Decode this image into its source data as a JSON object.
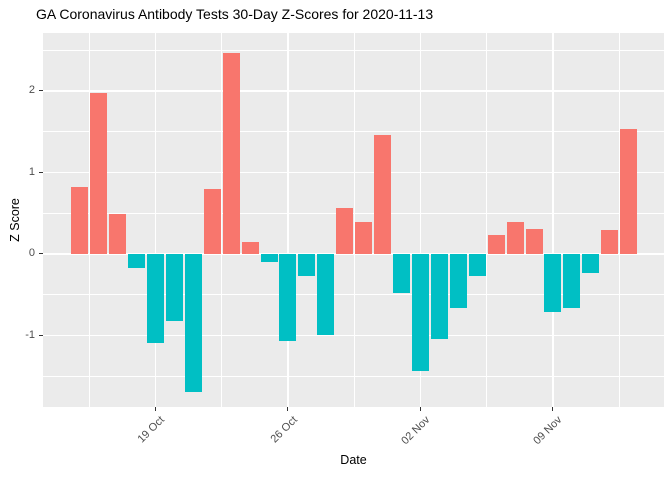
{
  "chart_data": {
    "type": "bar",
    "title": "GA Coronavirus Antibody Tests 30-Day Z-Scores for 2020-11-13",
    "xlabel": "Date",
    "ylabel": "Z Score",
    "x": [
      "2020-10-15",
      "2020-10-16",
      "2020-10-17",
      "2020-10-18",
      "2020-10-19",
      "2020-10-20",
      "2020-10-21",
      "2020-10-22",
      "2020-10-23",
      "2020-10-24",
      "2020-10-25",
      "2020-10-26",
      "2020-10-27",
      "2020-10-28",
      "2020-10-29",
      "2020-10-30",
      "2020-10-31",
      "2020-11-01",
      "2020-11-02",
      "2020-11-03",
      "2020-11-04",
      "2020-11-05",
      "2020-11-06",
      "2020-11-07",
      "2020-11-08",
      "2020-11-09",
      "2020-11-10",
      "2020-11-11",
      "2020-11-12",
      "2020-11-13"
    ],
    "values": [
      0.82,
      1.97,
      0.49,
      -0.17,
      -1.1,
      -0.83,
      -1.69,
      0.8,
      2.47,
      0.15,
      -0.1,
      -1.07,
      -0.27,
      -1.0,
      0.56,
      0.39,
      1.46,
      -0.48,
      -1.44,
      -1.04,
      -0.66,
      -0.27,
      0.23,
      0.39,
      0.3,
      -0.71,
      -0.66,
      -0.23,
      0.29,
      1.53
    ],
    "ylim": [
      -1.88,
      2.71
    ],
    "grid": true,
    "legend_position": "none",
    "y_axis": {
      "major_ticks": [
        2,
        1,
        0,
        -1
      ],
      "major_tick_labels": [
        "2",
        "1",
        "0",
        "-1"
      ],
      "minor_ticks": [
        2.5,
        1.5,
        0.5,
        -0.5,
        -1.5
      ]
    },
    "x_axis": {
      "major_ticks": [
        {
          "label": "19 Oct",
          "day_index": 4
        },
        {
          "label": "26 Oct",
          "day_index": 11
        },
        {
          "label": "02 Nov",
          "day_index": 18
        },
        {
          "label": "09 Nov",
          "day_index": 25
        }
      ],
      "minor_day_indices": [
        0.5,
        7.5,
        14.5,
        21.5,
        28.5
      ]
    },
    "colors": {
      "positive_bar": "#F8766D",
      "negative_bar": "#00BFC4",
      "panel_background": "#EBEBEB",
      "gridline": "#FFFFFF",
      "axis_text": "#4D4D4D",
      "tick_mark": "#333333",
      "title_text": "#000000"
    }
  }
}
